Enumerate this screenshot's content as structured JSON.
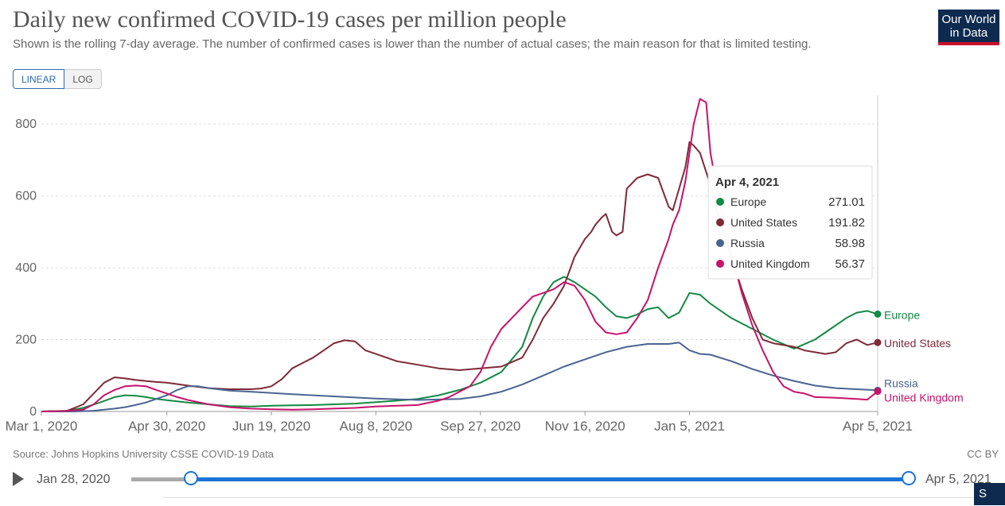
{
  "header": {
    "title": "Daily new confirmed COVID-19 cases per million people",
    "subtitle": "Shown is the rolling 7-day average. The number of confirmed cases is lower than the number of actual cases; the main reason for that is limited testing.",
    "logo_line1": "Our World",
    "logo_line2": "in Data"
  },
  "controls": {
    "linear_label": "LINEAR",
    "log_label": "LOG"
  },
  "footer": {
    "source": "Source: Johns Hopkins University CSSE COVID-19 Data",
    "license": "CC BY",
    "timeline_start": "Jan 28, 2020",
    "timeline_end": "Apr 5, 2021",
    "share_label": "S"
  },
  "colors": {
    "Europe": "#138a43",
    "United States": "#7e2a37",
    "Russia": "#4a6491",
    "United Kingdom": "#c8126a"
  },
  "chart_data": {
    "type": "line",
    "title": "Daily new confirmed COVID-19 cases per million people",
    "xlabel": "",
    "ylabel": "",
    "x_range": [
      "Mar 1, 2020",
      "Apr 5, 2021"
    ],
    "x_day_range": [
      0,
      400
    ],
    "ylim": [
      0,
      880
    ],
    "yticks": [
      0,
      200,
      400,
      600,
      800
    ],
    "xticks": [
      {
        "day": 0,
        "label": "Mar 1, 2020"
      },
      {
        "day": 60,
        "label": "Apr 30, 2020"
      },
      {
        "day": 110,
        "label": "Jun 19, 2020"
      },
      {
        "day": 160,
        "label": "Aug 8, 2020"
      },
      {
        "day": 210,
        "label": "Sep 27, 2020"
      },
      {
        "day": 260,
        "label": "Nov 16, 2020"
      },
      {
        "day": 310,
        "label": "Jan 5, 2021"
      },
      {
        "day": 400,
        "label": "Apr 5, 2021"
      }
    ],
    "series": [
      {
        "name": "Europe",
        "x": [
          0,
          12,
          20,
          28,
          35,
          40,
          45,
          50,
          55,
          62,
          70,
          80,
          90,
          100,
          110,
          120,
          130,
          140,
          150,
          160,
          170,
          180,
          190,
          200,
          210,
          220,
          230,
          235,
          240,
          245,
          250,
          255,
          260,
          265,
          270,
          275,
          280,
          285,
          290,
          295,
          300,
          305,
          310,
          315,
          320,
          330,
          340,
          350,
          360,
          370,
          375,
          380,
          385,
          390,
          395,
          400
        ],
        "y": [
          0,
          2,
          10,
          25,
          40,
          45,
          44,
          40,
          35,
          30,
          25,
          20,
          15,
          14,
          16,
          17,
          18,
          20,
          22,
          26,
          30,
          35,
          45,
          60,
          80,
          110,
          180,
          260,
          320,
          360,
          375,
          360,
          340,
          320,
          290,
          265,
          260,
          270,
          285,
          290,
          260,
          275,
          330,
          325,
          300,
          260,
          230,
          200,
          175,
          200,
          220,
          240,
          260,
          275,
          280,
          271
        ]
      },
      {
        "name": "United States",
        "x": [
          0,
          12,
          20,
          25,
          30,
          35,
          40,
          45,
          50,
          55,
          60,
          70,
          80,
          90,
          100,
          105,
          110,
          115,
          120,
          130,
          140,
          145,
          150,
          155,
          160,
          170,
          180,
          190,
          200,
          210,
          220,
          230,
          235,
          240,
          245,
          250,
          255,
          260,
          263,
          265,
          268,
          270,
          273,
          275,
          278,
          280,
          285,
          290,
          295,
          300,
          302,
          305,
          308,
          310,
          312,
          315,
          320,
          325,
          330,
          335,
          340,
          345,
          350,
          360,
          365,
          370,
          375,
          380,
          385,
          390,
          395,
          400
        ],
        "y": [
          0,
          1,
          20,
          50,
          80,
          95,
          92,
          88,
          85,
          82,
          80,
          72,
          65,
          62,
          62,
          64,
          70,
          90,
          120,
          150,
          190,
          198,
          195,
          170,
          160,
          140,
          130,
          120,
          115,
          120,
          125,
          150,
          200,
          260,
          300,
          350,
          430,
          480,
          500,
          520,
          540,
          550,
          500,
          490,
          500,
          620,
          650,
          660,
          650,
          570,
          560,
          620,
          680,
          750,
          740,
          720,
          630,
          520,
          430,
          340,
          260,
          200,
          190,
          180,
          170,
          165,
          160,
          165,
          190,
          200,
          185,
          192
        ]
      },
      {
        "name": "Russia",
        "x": [
          0,
          15,
          25,
          35,
          40,
          45,
          50,
          55,
          60,
          65,
          70,
          75,
          80,
          90,
          100,
          120,
          140,
          160,
          180,
          200,
          210,
          220,
          230,
          240,
          250,
          260,
          270,
          280,
          290,
          300,
          305,
          310,
          315,
          320,
          330,
          340,
          350,
          360,
          370,
          380,
          390,
          400
        ],
        "y": [
          0,
          0,
          2,
          8,
          12,
          18,
          25,
          35,
          45,
          60,
          70,
          70,
          65,
          58,
          55,
          48,
          42,
          36,
          32,
          35,
          42,
          55,
          75,
          100,
          125,
          145,
          165,
          180,
          188,
          188,
          192,
          170,
          160,
          158,
          140,
          118,
          100,
          85,
          72,
          65,
          62,
          59
        ]
      },
      {
        "name": "United Kingdom",
        "x": [
          0,
          10,
          20,
          25,
          30,
          35,
          40,
          45,
          50,
          55,
          60,
          65,
          70,
          80,
          90,
          100,
          110,
          120,
          130,
          140,
          150,
          160,
          170,
          180,
          190,
          195,
          200,
          205,
          210,
          215,
          220,
          225,
          230,
          235,
          240,
          245,
          250,
          255,
          260,
          265,
          270,
          275,
          280,
          285,
          290,
          295,
          300,
          302,
          305,
          308,
          310,
          312,
          315,
          318,
          320,
          325,
          330,
          335,
          340,
          345,
          350,
          355,
          360,
          365,
          370,
          380,
          390,
          395,
          400
        ],
        "y": [
          0,
          1,
          5,
          20,
          45,
          60,
          70,
          72,
          70,
          60,
          50,
          40,
          32,
          20,
          12,
          8,
          6,
          5,
          6,
          8,
          10,
          14,
          16,
          18,
          30,
          40,
          55,
          70,
          110,
          180,
          230,
          260,
          290,
          320,
          330,
          340,
          360,
          350,
          310,
          250,
          220,
          215,
          220,
          260,
          310,
          400,
          480,
          520,
          560,
          640,
          720,
          800,
          870,
          860,
          720,
          560,
          440,
          330,
          240,
          170,
          110,
          70,
          55,
          50,
          40,
          38,
          35,
          33,
          56
        ]
      }
    ],
    "tooltip": {
      "date": "Apr 4, 2021",
      "rows": [
        {
          "name": "Europe",
          "value": "271.01"
        },
        {
          "name": "United States",
          "value": "191.82"
        },
        {
          "name": "Russia",
          "value": "58.98"
        },
        {
          "name": "United Kingdom",
          "value": "56.37"
        }
      ]
    },
    "end_labels": [
      "Europe",
      "United States",
      "Russia",
      "United Kingdom"
    ]
  }
}
